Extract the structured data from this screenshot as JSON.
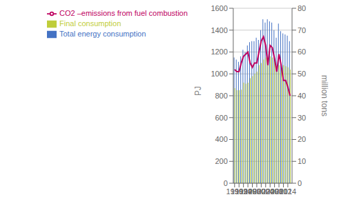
{
  "chart_data": {
    "type": "bar",
    "x": [
      1990,
      1991,
      1992,
      1993,
      1994,
      1995,
      1996,
      1997,
      1998,
      1999,
      2000,
      2001,
      2002,
      2003,
      2004,
      2005,
      2006,
      2007,
      2008,
      2009,
      2010,
      2011,
      2012,
      2013,
      2014,
      2015
    ],
    "xlim": [
      1989.4,
      2015.9
    ],
    "xticks": [
      1990,
      1992,
      1994,
      1996,
      1998,
      2000,
      2002,
      2004,
      2006,
      2008,
      2010,
      2012,
      2014
    ],
    "ylim": [
      0,
      1600
    ],
    "yticks": [
      0,
      200,
      400,
      600,
      800,
      1000,
      1200,
      1400,
      1600
    ],
    "y2lim": [
      0,
      80
    ],
    "y2ticks": [
      0,
      10,
      20,
      30,
      40,
      50,
      60,
      70,
      80
    ],
    "y_label": "PJ",
    "y2_label": "million  tons",
    "grid": true,
    "legend": "upper left",
    "series": [
      {
        "name": "Total energy consumption",
        "type": "bar",
        "color": "#4472C4",
        "values": [
          1150,
          1130,
          1110,
          1160,
          1220,
          1200,
          1260,
          1290,
          1300,
          1300,
          1330,
          1310,
          1400,
          1500,
          1470,
          1500,
          1480,
          1470,
          1400,
          1330,
          1460,
          1390,
          1370,
          1360,
          1350,
          1300
        ]
      },
      {
        "name": "Final consumption",
        "type": "bar",
        "color": "#BFCD3A",
        "values": [
          870,
          850,
          850,
          855,
          920,
          910,
          920,
          960,
          980,
          1000,
          1020,
          1080,
          1100,
          1130,
          1150,
          1150,
          1160,
          1150,
          1140,
          1070,
          1080,
          1080,
          1080,
          1070,
          1060,
          1040
        ]
      },
      {
        "name": "CO2 –emissions from fuel combustion",
        "type": "line",
        "axis": "y2",
        "color": "#BE005F",
        "values": [
          52,
          51,
          51,
          55,
          58,
          59,
          60,
          55,
          53,
          55,
          55,
          60,
          65,
          67,
          63,
          54,
          63,
          62,
          57,
          51,
          59,
          54,
          47,
          47,
          44,
          40
        ]
      }
    ]
  }
}
